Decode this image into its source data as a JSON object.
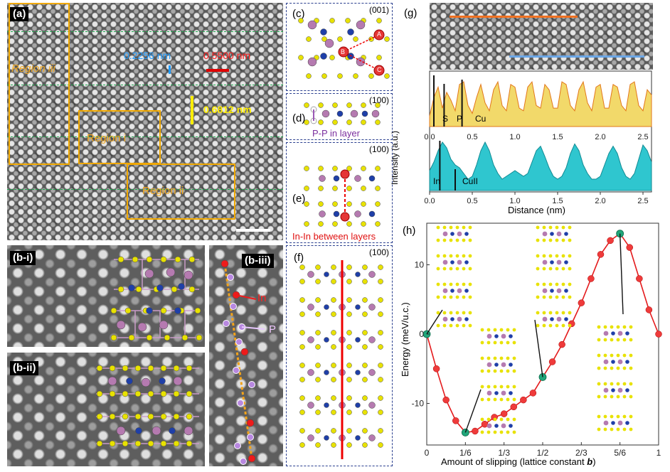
{
  "panel_a": {
    "label": "(a)",
    "lattice_a_label": "0.2256 nm",
    "lattice_b_label": "0.5500 nm",
    "lattice_c_label": "0.6812 nm",
    "region_i": "Region i",
    "region_ii": "Region ii",
    "region_iii": "Region iii"
  },
  "panel_b": {
    "b_i_label": "(b-i)",
    "b_ii_label": "(b-ii)",
    "b_iii_label": "(b-iii)",
    "in_label": "In",
    "p_label": "P"
  },
  "panel_c": {
    "label": "(c)",
    "zone": "(001)",
    "site_a": "A",
    "site_b": "B",
    "site_c": "C"
  },
  "panel_d": {
    "label": "(d)",
    "zone": "(100)",
    "caption": "P-P in layer"
  },
  "panel_e": {
    "label": "(e)",
    "zone": "(100)",
    "caption": "In-In between layers"
  },
  "panel_f": {
    "label": "(f)",
    "zone": "(100)"
  },
  "panel_g": {
    "label": "(g)",
    "ylabel": "Intensity (a.u.)",
    "xlabel": "Distance (nm)",
    "upper_markers": [
      "S",
      "P",
      "Cu"
    ],
    "lower_markers": [
      "In",
      "CuII"
    ],
    "xticks": [
      "0.0",
      "0.5",
      "1.0",
      "1.5",
      "2.0",
      "2.5"
    ]
  },
  "panel_h": {
    "label": "(h)",
    "xlabel_prefix": "Amount of slipping (lattice constant ",
    "xlabel_var": "b",
    "xlabel_suffix": ")",
    "ylabel": "Energy (meV/u.c.)",
    "xticks": [
      "0",
      "1/6",
      "1/3",
      "1/2",
      "2/3",
      "5/6",
      "1"
    ],
    "yticks": [
      "10",
      "0",
      "-10"
    ]
  },
  "colors": {
    "region_box": "#f0a800",
    "lattice_a": "#1e90ff",
    "lattice_b": "#e00000",
    "lattice_c": "#ffee00",
    "green_line": "#1ea84e",
    "upper_profile": "#f2d96a",
    "lower_profile": "#2fc6cf",
    "energy_curve": "#e41a1c",
    "energy_special": "#21a67a",
    "atom_in": "#b57ab0",
    "atom_p": "#9b59b6",
    "atom_s": "#e8e200",
    "atom_cu": "#1f3fa8"
  },
  "chart_data": [
    {
      "type": "area",
      "panel": "(g)",
      "xlabel": "Distance (nm)",
      "ylabel": "Intensity (a.u.)",
      "xlim": [
        0,
        2.6
      ],
      "series": [
        {
          "x": [
            0.0,
            0.05,
            0.1,
            0.15,
            0.2,
            0.25,
            0.3,
            0.35,
            0.4,
            0.45,
            0.5,
            0.55,
            0.6,
            0.65,
            0.7,
            0.75,
            0.8,
            0.85,
            0.9,
            0.95,
            1.0,
            1.05,
            1.1,
            1.15,
            1.2,
            1.25,
            1.3,
            1.35,
            1.4,
            1.45,
            1.5,
            1.55,
            1.6,
            1.65,
            1.7,
            1.75,
            1.8,
            1.85,
            1.9,
            1.95,
            2.0,
            2.05,
            2.1,
            2.15,
            2.2,
            2.25,
            2.3,
            2.35,
            2.4,
            2.45,
            2.5,
            2.55,
            2.6
          ],
          "y": [
            0.2,
            0.55,
            0.75,
            0.35,
            0.65,
            0.5,
            0.3,
            0.8,
            0.85,
            0.4,
            0.25,
            0.55,
            0.8,
            0.45,
            0.3,
            0.7,
            0.85,
            0.4,
            0.3,
            0.8,
            0.75,
            0.35,
            0.3,
            0.75,
            0.85,
            0.4,
            0.35,
            0.8,
            0.7,
            0.35,
            0.35,
            0.85,
            0.8,
            0.4,
            0.3,
            0.7,
            0.85,
            0.45,
            0.3,
            0.75,
            0.8,
            0.35,
            0.35,
            0.8,
            0.75,
            0.4,
            0.3,
            0.8,
            0.85,
            0.4,
            0.3,
            0.7,
            0.6
          ]
        },
        {
          "x": [
            0.0,
            0.05,
            0.1,
            0.15,
            0.2,
            0.25,
            0.3,
            0.35,
            0.4,
            0.45,
            0.5,
            0.55,
            0.6,
            0.65,
            0.7,
            0.75,
            0.8,
            0.85,
            0.9,
            0.95,
            1.0,
            1.05,
            1.1,
            1.15,
            1.2,
            1.25,
            1.3,
            1.35,
            1.4,
            1.45,
            1.5,
            1.55,
            1.6,
            1.65,
            1.7,
            1.75,
            1.8,
            1.85,
            1.9,
            1.95,
            2.0,
            2.05,
            2.1,
            2.15,
            2.2,
            2.25,
            2.3,
            2.35,
            2.4,
            2.45,
            2.5,
            2.55,
            2.6
          ],
          "y": [
            0.35,
            0.5,
            0.7,
            0.85,
            0.75,
            0.55,
            0.45,
            0.4,
            0.3,
            0.2,
            0.25,
            0.45,
            0.7,
            0.85,
            0.7,
            0.45,
            0.3,
            0.2,
            0.25,
            0.3,
            0.35,
            0.3,
            0.25,
            0.3,
            0.5,
            0.7,
            0.78,
            0.6,
            0.4,
            0.25,
            0.2,
            0.25,
            0.4,
            0.65,
            0.82,
            0.7,
            0.45,
            0.3,
            0.2,
            0.2,
            0.25,
            0.45,
            0.65,
            0.78,
            0.65,
            0.4,
            0.25,
            0.2,
            0.3,
            0.55,
            0.8,
            0.7,
            0.5
          ]
        }
      ],
      "xticks": [
        "0.0",
        "0.5",
        "1.0",
        "1.5",
        "2.0",
        "2.5"
      ]
    },
    {
      "type": "line",
      "panel": "(h)",
      "xlabel": "Amount of slipping (lattice constant b)",
      "ylabel": "Energy (meV/u.c.)",
      "xlim": [
        0,
        1
      ],
      "ylim": [
        -16,
        16
      ],
      "x": [
        0,
        0.0417,
        0.0833,
        0.125,
        0.1667,
        0.2083,
        0.25,
        0.2917,
        0.3333,
        0.375,
        0.4167,
        0.4583,
        0.5,
        0.5417,
        0.5833,
        0.625,
        0.6667,
        0.7083,
        0.75,
        0.7917,
        0.8333,
        0.875,
        0.9167,
        0.9583,
        1.0
      ],
      "y": [
        0,
        -5,
        -9.5,
        -12.5,
        -14.2,
        -14.0,
        -13.0,
        -12.0,
        -11.5,
        -10.5,
        -9.5,
        -8.5,
        -6.2,
        -4.0,
        -1.5,
        1.5,
        4.5,
        8.0,
        11.5,
        13.5,
        14.5,
        12.5,
        8.0,
        3.5,
        0
      ],
      "special_points": [
        [
          0,
          0
        ],
        [
          0.1667,
          -14.2
        ],
        [
          0.5,
          -6.2
        ],
        [
          0.8333,
          14.5
        ]
      ],
      "xticks": [
        "0",
        "1/6",
        "1/3",
        "1/2",
        "2/3",
        "5/6",
        "1"
      ],
      "yticks": [
        10,
        0,
        -10
      ]
    }
  ]
}
